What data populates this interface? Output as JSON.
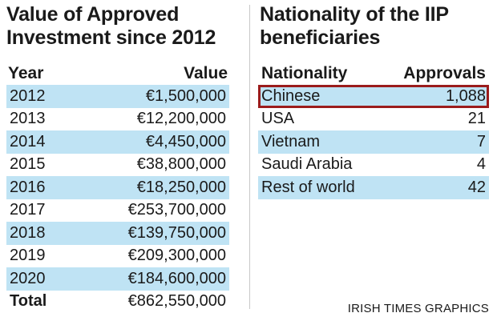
{
  "investment": {
    "title_line1": "Value of Approved",
    "title_line2": "Investment since 2012",
    "headers": {
      "year": "Year",
      "value": "Value"
    },
    "rows": [
      {
        "year": "2012",
        "value": "€1,500,000"
      },
      {
        "year": "2013",
        "value": "€12,200,000"
      },
      {
        "year": "2014",
        "value": "€4,450,000"
      },
      {
        "year": "2015",
        "value": "€38,800,000"
      },
      {
        "year": "2016",
        "value": "€18,250,000"
      },
      {
        "year": "2017",
        "value": "€253,700,000"
      },
      {
        "year": "2018",
        "value": "€139,750,000"
      },
      {
        "year": "2019",
        "value": "€209,300,000"
      },
      {
        "year": "2020",
        "value": "€184,600,000"
      }
    ],
    "total": {
      "label": "Total",
      "value": "€862,550,000"
    }
  },
  "nationality": {
    "title_line1": "Nationality of the IIP",
    "title_line2": "beneficiaries",
    "headers": {
      "nationality": "Nationality",
      "approvals": "Approvals"
    },
    "rows": [
      {
        "nationality": "Chinese",
        "approvals": "1,088"
      },
      {
        "nationality": "USA",
        "approvals": "21"
      },
      {
        "nationality": "Vietnam",
        "approvals": "7"
      },
      {
        "nationality": "Saudi Arabia",
        "approvals": "4"
      },
      {
        "nationality": "Rest of world",
        "approvals": "42"
      }
    ]
  },
  "credit": "IRISH TIMES GRAPHICS",
  "colors": {
    "row_shade": "#bfe3f4",
    "highlight_border": "#9b1c1c",
    "text": "#1a1a1a"
  }
}
